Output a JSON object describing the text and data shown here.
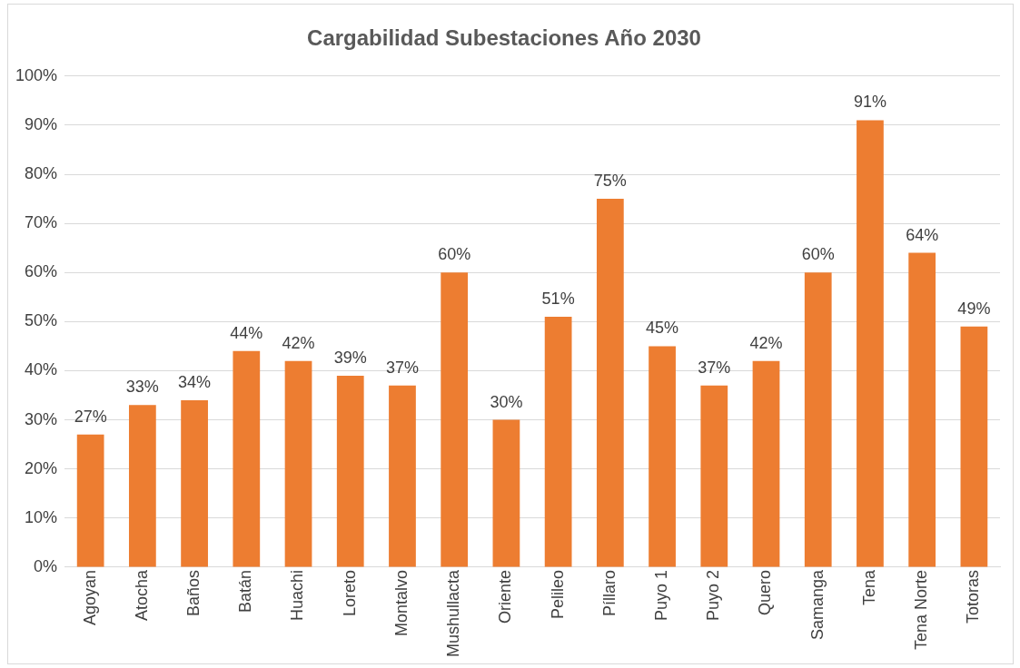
{
  "chart_data": {
    "type": "bar",
    "title": "Cargabilidad Subestaciones Año 2030",
    "categories": [
      "Agoyan",
      "Atocha",
      "Baños",
      "Batán",
      "Huachi",
      "Loreto",
      "Montalvo",
      "Mushullacta",
      "Oriente",
      "Pelileo",
      "Píllaro",
      "Puyo 1",
      "Puyo 2",
      "Quero",
      "Samanga",
      "Tena",
      "Tena Norte",
      "Totoras"
    ],
    "values": [
      27,
      33,
      34,
      44,
      42,
      39,
      37,
      60,
      30,
      51,
      75,
      45,
      37,
      42,
      60,
      91,
      64,
      49
    ],
    "value_labels": [
      "27%",
      "33%",
      "34%",
      "44%",
      "42%",
      "39%",
      "37%",
      "60%",
      "30%",
      "51%",
      "75%",
      "45%",
      "37%",
      "42%",
      "60%",
      "91%",
      "64%",
      "49%"
    ],
    "color": "#ed7d31",
    "ylim": [
      0,
      100
    ],
    "yticks": [
      {
        "value": 0,
        "label": "0%"
      },
      {
        "value": 10,
        "label": "10%"
      },
      {
        "value": 20,
        "label": "20%"
      },
      {
        "value": 30,
        "label": "30%"
      },
      {
        "value": 40,
        "label": "40%"
      },
      {
        "value": 50,
        "label": "50%"
      },
      {
        "value": 60,
        "label": "60%"
      },
      {
        "value": 70,
        "label": "70%"
      },
      {
        "value": 80,
        "label": "80%"
      },
      {
        "value": 90,
        "label": "90%"
      },
      {
        "value": 100,
        "label": "100%"
      }
    ],
    "grid": "y"
  }
}
